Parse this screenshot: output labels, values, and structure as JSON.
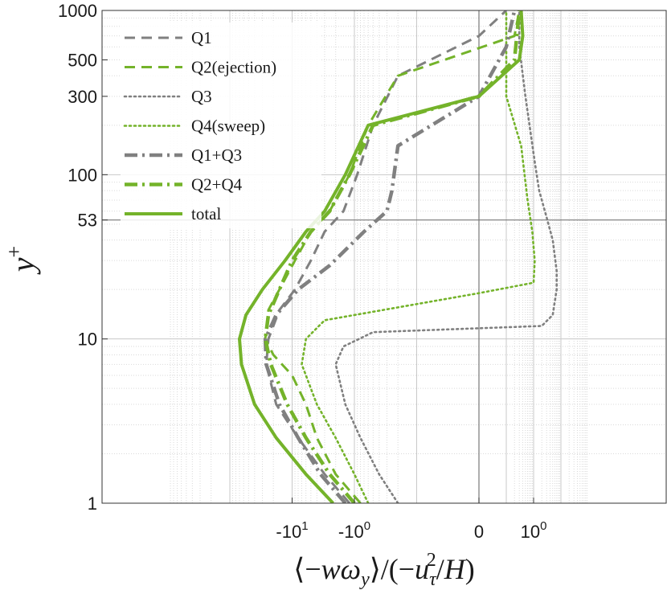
{
  "chart_data": {
    "type": "line",
    "x_scale": "symlog",
    "y_scale": "log",
    "xlim": [
      -200,
      10
    ],
    "ylim": [
      1,
      1000
    ],
    "xlabel": "⟨−wω_y⟩/(−u_τ²/H)",
    "ylabel": "y+",
    "grid": true,
    "legend_position": "top-left",
    "x_tick_labels": [
      {
        "value": -10,
        "text": "-10^1"
      },
      {
        "value": -1,
        "text": "-10^0"
      },
      {
        "value": 0,
        "text": "0"
      },
      {
        "value": 1,
        "text": "10^0"
      }
    ],
    "y_tick_labels": [
      {
        "value": 1,
        "text": "1"
      },
      {
        "value": 10,
        "text": "10"
      },
      {
        "value": 53,
        "text": "53"
      },
      {
        "value": 100,
        "text": "100"
      },
      {
        "value": 300,
        "text": "300"
      },
      {
        "value": 500,
        "text": "500"
      },
      {
        "value": 1000,
        "text": "1000"
      }
    ],
    "reference_lines": {
      "x": 0,
      "y": 53
    },
    "series": [
      {
        "name": "Q1",
        "color": "#808080",
        "dash": "dash",
        "width": 3,
        "points": [
          [
            -1.2,
            1
          ],
          [
            -3,
            1.5
          ],
          [
            -8,
            2.5
          ],
          [
            -18,
            4
          ],
          [
            -26,
            7
          ],
          [
            -24,
            10
          ],
          [
            -16,
            15
          ],
          [
            -9,
            20
          ],
          [
            -5,
            30
          ],
          [
            -3,
            45
          ],
          [
            -1.5,
            60
          ],
          [
            -0.9,
            100
          ],
          [
            -0.5,
            200
          ],
          [
            -0.2,
            400
          ],
          [
            0,
            700
          ],
          [
            0.1,
            1000
          ]
        ]
      },
      {
        "name": "Q2(ejection)",
        "color": "#74b32a",
        "dash": "dash",
        "width": 3,
        "points": [
          [
            -0.8,
            1
          ],
          [
            -2,
            1.5
          ],
          [
            -4,
            2.5
          ],
          [
            -6,
            4
          ],
          [
            -10,
            6
          ],
          [
            -20,
            8
          ],
          [
            -27,
            10
          ],
          [
            -24,
            15
          ],
          [
            -16,
            20
          ],
          [
            -9,
            30
          ],
          [
            -5,
            45
          ],
          [
            -2.5,
            60
          ],
          [
            -1.2,
            100
          ],
          [
            -0.6,
            200
          ],
          [
            -0.2,
            400
          ],
          [
            0.2,
            700
          ],
          [
            0.3,
            1000
          ]
        ]
      },
      {
        "name": "Q3",
        "color": "#808080",
        "dash": "dot",
        "width": 2.6,
        "points": [
          [
            -0.2,
            1
          ],
          [
            -0.4,
            1.5
          ],
          [
            -0.8,
            2.5
          ],
          [
            -1.4,
            4
          ],
          [
            -2,
            7
          ],
          [
            -1.5,
            9
          ],
          [
            -0.5,
            11
          ],
          [
            2,
            12
          ],
          [
            5,
            14
          ],
          [
            7,
            20
          ],
          [
            7,
            26
          ],
          [
            5,
            40
          ],
          [
            3,
            55
          ],
          [
            1.6,
            80
          ],
          [
            1.1,
            120
          ],
          [
            0.5,
            300
          ],
          [
            0.3,
            600
          ],
          [
            0.3,
            1000
          ]
        ]
      },
      {
        "name": "Q4(sweep)",
        "color": "#74b32a",
        "dash": "dot",
        "width": 2.6,
        "points": [
          [
            -0.6,
            1
          ],
          [
            -1,
            1.5
          ],
          [
            -2,
            2.5
          ],
          [
            -4,
            4
          ],
          [
            -7,
            7
          ],
          [
            -6,
            10
          ],
          [
            -3,
            13
          ],
          [
            0,
            19
          ],
          [
            1,
            22
          ],
          [
            1.1,
            30
          ],
          [
            0.9,
            45
          ],
          [
            0.6,
            70
          ],
          [
            0.35,
            150
          ],
          [
            0.1,
            300
          ],
          [
            0.1,
            1000
          ]
        ]
      },
      {
        "name": "Q1+Q3",
        "color": "#808080",
        "dash": "dashdot",
        "width": 4.5,
        "points": [
          [
            -1.4,
            1
          ],
          [
            -3.5,
            1.5
          ],
          [
            -8,
            2.5
          ],
          [
            -16,
            4
          ],
          [
            -26,
            7
          ],
          [
            -27,
            10
          ],
          [
            -18,
            14
          ],
          [
            -8,
            20
          ],
          [
            -2.5,
            28
          ],
          [
            -0.7,
            45
          ],
          [
            -0.3,
            60
          ],
          [
            -0.25,
            80
          ],
          [
            -0.2,
            150
          ],
          [
            0,
            300
          ],
          [
            0.1,
            600
          ],
          [
            0.2,
            1000
          ]
        ]
      },
      {
        "name": "Q2+Q4",
        "color": "#74b32a",
        "dash": "dashdot",
        "width": 4.5,
        "points": [
          [
            -1,
            1
          ],
          [
            -2.5,
            1.5
          ],
          [
            -6,
            2.5
          ],
          [
            -12,
            4
          ],
          [
            -22,
            7
          ],
          [
            -27,
            10
          ],
          [
            -24,
            14
          ],
          [
            -16,
            20
          ],
          [
            -10,
            30
          ],
          [
            -5,
            45
          ],
          [
            -2.5,
            60
          ],
          [
            -1.2,
            100
          ],
          [
            -0.5,
            200
          ],
          [
            0,
            300
          ],
          [
            0.2,
            500
          ],
          [
            0.3,
            1000
          ]
        ]
      },
      {
        "name": "total",
        "color": "#74b32a",
        "dash": "solid",
        "width": 4,
        "points": [
          [
            -2.2,
            1
          ],
          [
            -6,
            1.5
          ],
          [
            -18,
            2.5
          ],
          [
            -40,
            4
          ],
          [
            -65,
            7
          ],
          [
            -70,
            10
          ],
          [
            -55,
            14
          ],
          [
            -30,
            20
          ],
          [
            -13,
            30
          ],
          [
            -6,
            45
          ],
          [
            -3,
            60
          ],
          [
            -1.4,
            100
          ],
          [
            -0.6,
            200
          ],
          [
            0,
            300
          ],
          [
            0.3,
            500
          ],
          [
            0.4,
            700
          ],
          [
            0.35,
            1000
          ]
        ]
      }
    ]
  }
}
